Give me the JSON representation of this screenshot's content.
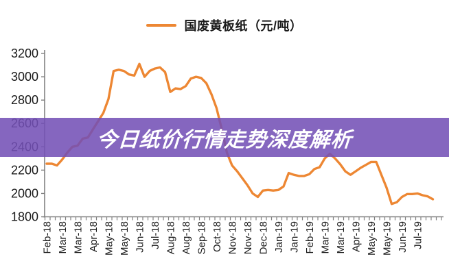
{
  "banner": {
    "title": "今日纸价行情走势深度解析",
    "background_color": "#8566BF",
    "text_color": "#FFFFFF"
  },
  "chart_data": {
    "type": "line",
    "title": "",
    "legend": "国废黄板纸（元/吨）",
    "legend_position": "top",
    "grid": false,
    "line_color": "#ED8733",
    "axis_color": "#808080",
    "label_color": "#1a1a1a",
    "ylim": [
      1800,
      3200
    ],
    "yticks": [
      3200,
      3000,
      2800,
      2600,
      2400,
      2200,
      2000,
      1800
    ],
    "x_tick_label_every": 3,
    "x_labels": [
      "Feb-18",
      "Mar-18",
      "Mar-18",
      "Apr-18",
      "May-18",
      "May-18",
      "Jun-18",
      "Jul-18",
      "Aug-18",
      "Aug-18",
      "Sep-18",
      "Oct-18",
      "Nov-18",
      "Nov-18",
      "Dec-18",
      "Jan-19",
      "Jan-19",
      "Feb-19",
      "Mar-19",
      "Mar-19",
      "Apr-19",
      "May-19",
      "May-19",
      "Jun-19",
      "Jul-19"
    ],
    "series": [
      {
        "name": "国废黄板纸（元/吨）",
        "values": [
          2255,
          2255,
          2240,
          2290,
          2350,
          2400,
          2410,
          2470,
          2480,
          2550,
          2620,
          2690,
          2810,
          3050,
          3060,
          3050,
          3020,
          3010,
          3110,
          3000,
          3050,
          3070,
          3080,
          3040,
          2870,
          2900,
          2895,
          2920,
          2985,
          3000,
          2990,
          2945,
          2850,
          2730,
          2550,
          2350,
          2240,
          2190,
          2130,
          2070,
          2000,
          1970,
          2025,
          2030,
          2025,
          2030,
          2060,
          2175,
          2160,
          2150,
          2150,
          2165,
          2210,
          2225,
          2300,
          2340,
          2300,
          2250,
          2190,
          2160,
          2190,
          2220,
          2245,
          2270,
          2270,
          2160,
          2050,
          1910,
          1925,
          1970,
          1995,
          1995,
          2000,
          1985,
          1975,
          1950
        ]
      }
    ]
  }
}
